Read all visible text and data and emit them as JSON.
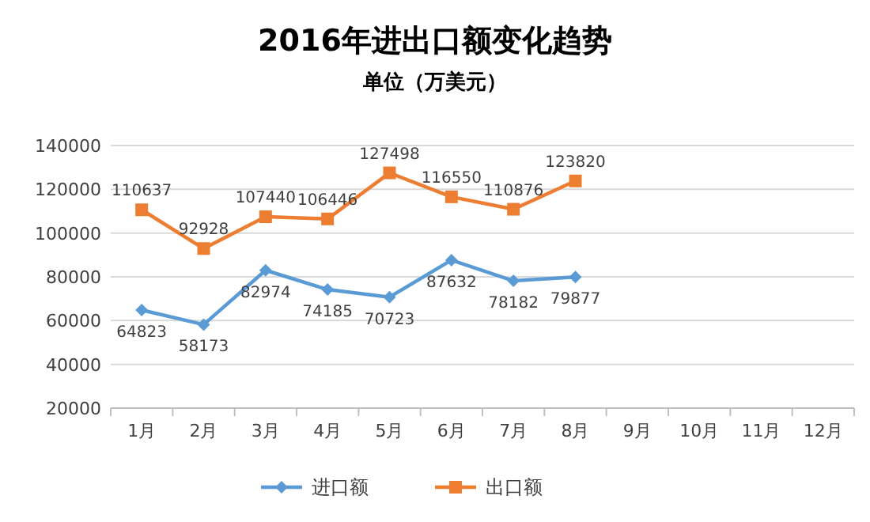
{
  "chart_data": {
    "type": "line",
    "title": "2016年进出口额变化趋势",
    "subtitle": "单位（万美元）",
    "categories": [
      "1月",
      "2月",
      "3月",
      "4月",
      "5月",
      "6月",
      "7月",
      "8月",
      "9月",
      "10月",
      "11月",
      "12月"
    ],
    "series": [
      {
        "name": "进口额",
        "color": "#5b9bd5",
        "marker": "diamond",
        "values": [
          64823,
          58173,
          82974,
          74185,
          70723,
          87632,
          78182,
          79877,
          null,
          null,
          null,
          null
        ]
      },
      {
        "name": "出口额",
        "color": "#ed7d31",
        "marker": "square",
        "values": [
          110637,
          92928,
          107440,
          106446,
          127498,
          116550,
          110876,
          123820,
          null,
          null,
          null,
          null
        ]
      }
    ],
    "ylim": [
      20000,
      140000
    ],
    "yticks": [
      20000,
      40000,
      60000,
      80000,
      100000,
      120000,
      140000
    ],
    "grid": "y",
    "legend": "bottom",
    "data_labels": true
  }
}
